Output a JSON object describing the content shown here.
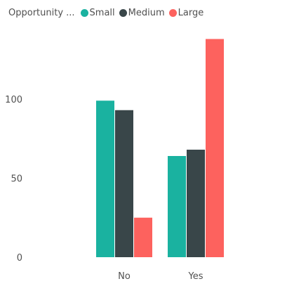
{
  "legend": {
    "title": "Opportunity ...",
    "items": [
      {
        "label": "Small",
        "color": "#1ab2a0"
      },
      {
        "label": "Medium",
        "color": "#394649"
      },
      {
        "label": "Large",
        "color": "#fd625e"
      }
    ]
  },
  "chart_data": {
    "type": "bar",
    "categories": [
      "No",
      "Yes"
    ],
    "series": [
      {
        "name": "Small",
        "values": [
          99,
          64
        ],
        "color": "#1ab2a0"
      },
      {
        "name": "Medium",
        "values": [
          93,
          68
        ],
        "color": "#394649"
      },
      {
        "name": "Large",
        "values": [
          25,
          138
        ],
        "color": "#fd625e"
      }
    ],
    "yticks": [
      0,
      50,
      100
    ],
    "ylim": [
      0,
      140
    ],
    "legend_position": "top-left",
    "grid": false,
    "title": "",
    "xlabel": "",
    "ylabel": ""
  }
}
